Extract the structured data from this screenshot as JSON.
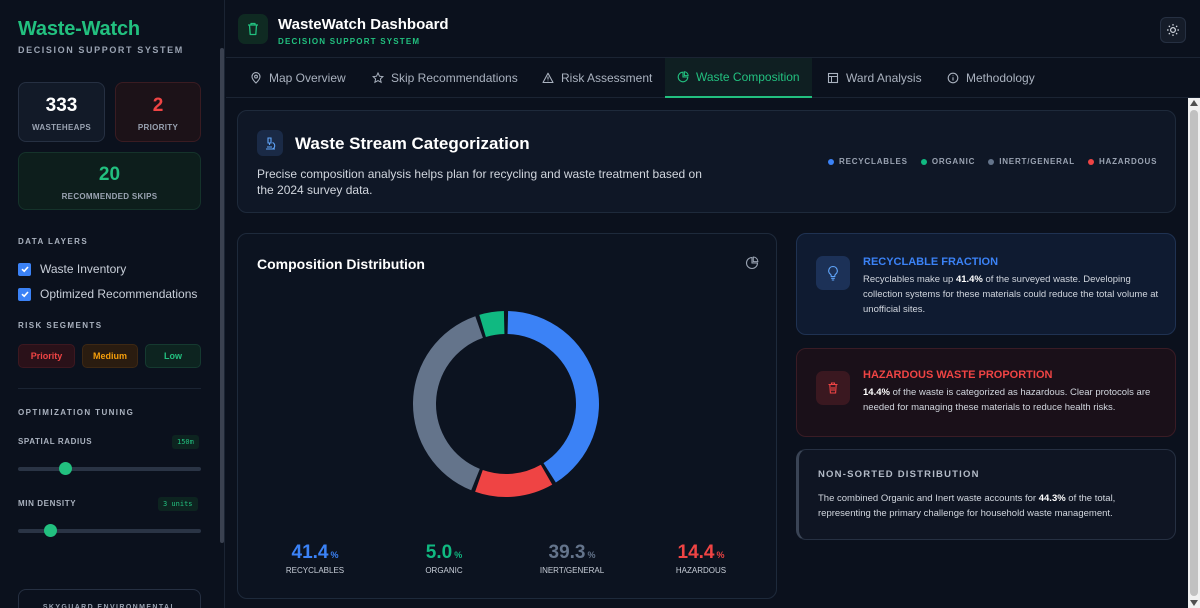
{
  "sidebar": {
    "brand": "Waste-Watch",
    "brand_sub": "DECISION SUPPORT SYSTEM",
    "stats": {
      "wasteheaps": {
        "value": "333",
        "label": "WASTEHEAPS"
      },
      "priority": {
        "value": "2",
        "label": "PRIORITY"
      },
      "skips": {
        "value": "20",
        "label": "RECOMMENDED SKIPS"
      }
    },
    "data_layers_title": "DATA LAYERS",
    "layers": [
      {
        "label": "Waste Inventory",
        "checked": true
      },
      {
        "label": "Optimized Recommendations",
        "checked": true
      }
    ],
    "risk_title": "RISK SEGMENTS",
    "risk": {
      "priority": "Priority",
      "medium": "Medium",
      "low": "Low"
    },
    "tuning_title": "OPTIMIZATION TUNING",
    "radius": {
      "label": "SPATIAL RADIUS",
      "value": "150m",
      "level": 0.24
    },
    "density": {
      "label": "MIN DENSITY",
      "value": "3 units",
      "level": 0.15
    },
    "footer": "SKYGUARD ENVIRONMENTAL"
  },
  "header": {
    "title": "WasteWatch Dashboard",
    "subtitle": "DECISION SUPPORT SYSTEM"
  },
  "tabs": [
    {
      "label": "Map Overview",
      "icon": "map-pin-icon"
    },
    {
      "label": "Skip Recommendations",
      "icon": "star-icon"
    },
    {
      "label": "Risk Assessment",
      "icon": "warning-icon"
    },
    {
      "label": "Waste Composition",
      "icon": "pie-chart-icon",
      "active": true
    },
    {
      "label": "Ward Analysis",
      "icon": "table-icon"
    },
    {
      "label": "Methodology",
      "icon": "info-icon"
    }
  ],
  "hero": {
    "title": "Waste Stream Categorization",
    "text": "Precise composition analysis helps plan for recycling and waste treatment based on the 2024 survey data.",
    "legend": [
      {
        "label": "RECYCLABLES",
        "color": "#3b82f6"
      },
      {
        "label": "ORGANIC",
        "color": "#10b981"
      },
      {
        "label": "INERT/GENERAL",
        "color": "#64748b"
      },
      {
        "label": "HAZARDOUS",
        "color": "#ef4444"
      }
    ]
  },
  "chart_data": {
    "type": "pie",
    "title": "Composition Distribution",
    "categories": [
      "RECYCLABLES",
      "HAZARDOUS",
      "INERT/GENERAL",
      "ORGANIC"
    ],
    "values": [
      41.4,
      14.4,
      39.3,
      5.0
    ],
    "colors": [
      "#3b82f6",
      "#ef4444",
      "#64748b",
      "#10b981"
    ]
  },
  "dist_stats": [
    {
      "value": "41.4",
      "unit": "%",
      "label": "RECYCLABLES",
      "color": "#3b82f6"
    },
    {
      "value": "5.0",
      "unit": "%",
      "label": "ORGANIC",
      "color": "#10b981"
    },
    {
      "value": "39.3",
      "unit": "%",
      "label": "INERT/GENERAL",
      "color": "#64748b"
    },
    {
      "value": "14.4",
      "unit": "%",
      "label": "HAZARDOUS",
      "color": "#ef4444"
    }
  ],
  "recyclable": {
    "title": "RECYCLABLE FRACTION",
    "pre": "Recyclables make up ",
    "bold": "41.4%",
    "post": " of the surveyed waste. Developing collection systems for these materials could reduce the total volume at unofficial sites."
  },
  "hazardous": {
    "title": "HAZARDOUS WASTE PROPORTION",
    "bold": "14.4%",
    "post": " of the waste is categorized as hazardous. Clear protocols are needed for managing these materials to reduce health risks."
  },
  "nonsorted": {
    "title": "NON-SORTED DISTRIBUTION",
    "pre": "The combined Organic and Inert waste accounts for ",
    "bold": "44.3%",
    "post": " of the total, representing the primary challenge for household waste management."
  }
}
